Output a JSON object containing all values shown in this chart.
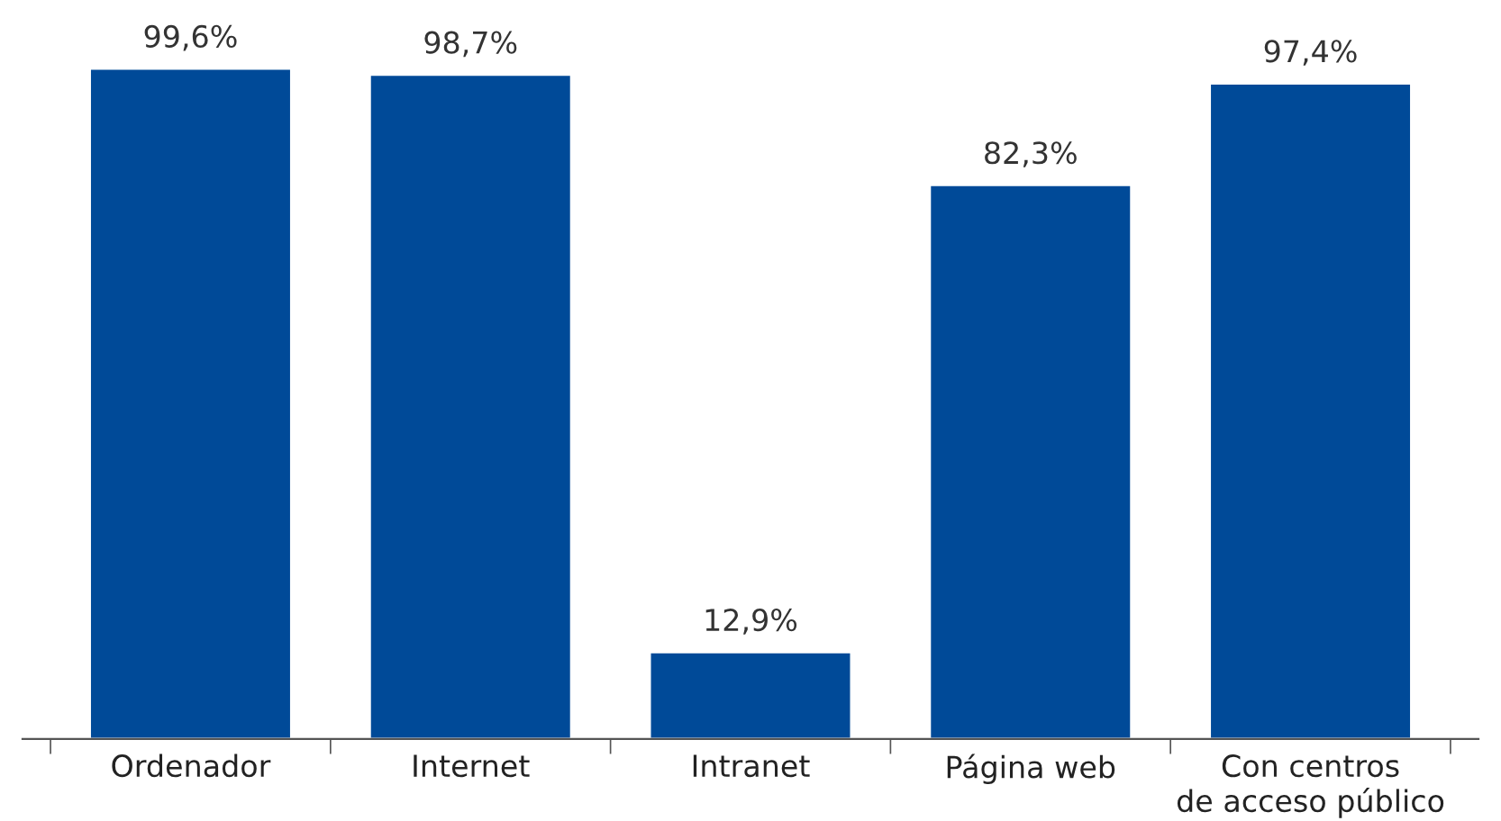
{
  "chart_data": {
    "type": "bar",
    "categories": [
      "Ordenador",
      "Internet",
      "Intranet",
      "Página web",
      "Con centros\nde acceso público"
    ],
    "values": [
      99.6,
      98.7,
      12.9,
      82.3,
      97.4
    ],
    "value_labels": [
      "99,6%",
      "98,7%",
      "12,9%",
      "82,3%",
      "97,4%"
    ],
    "color": "#004a98",
    "grid": false,
    "legend": false
  }
}
